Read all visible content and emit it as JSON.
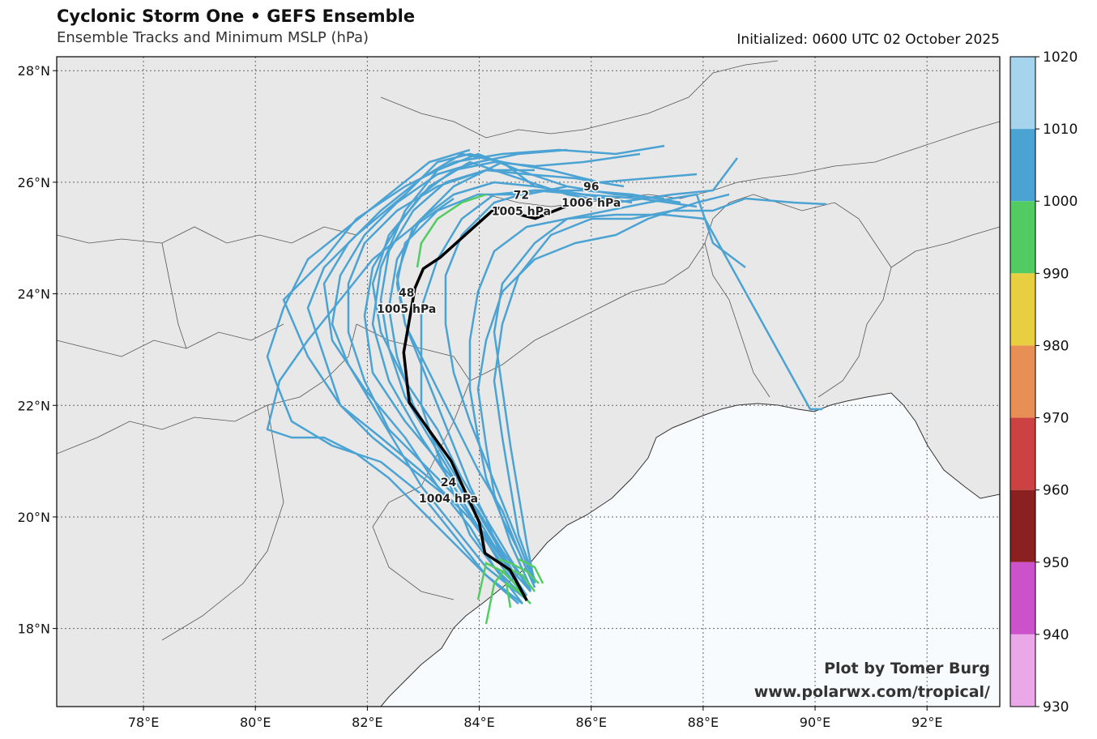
{
  "header": {
    "title": "Cyclonic Storm One • GEFS Ensemble",
    "subtitle": "Ensemble Tracks and Minimum MSLP (hPa)",
    "initialized": "Initialized: 0600 UTC 02 October 2025"
  },
  "map": {
    "lon_range": [
      76.45,
      93.3
    ],
    "lat_range": [
      16.6,
      28.25
    ],
    "lon_ticks": [
      {
        "value": 78,
        "label": "78°E"
      },
      {
        "value": 80,
        "label": "80°E"
      },
      {
        "value": 82,
        "label": "82°E"
      },
      {
        "value": 84,
        "label": "84°E"
      },
      {
        "value": 86,
        "label": "86°E"
      },
      {
        "value": 88,
        "label": "88°E"
      },
      {
        "value": 90,
        "label": "90°E"
      },
      {
        "value": 92,
        "label": "92°E"
      }
    ],
    "lat_ticks": [
      {
        "value": 18,
        "label": "18°N"
      },
      {
        "value": 20,
        "label": "20°N"
      },
      {
        "value": 22,
        "label": "22°N"
      },
      {
        "value": 24,
        "label": "24°N"
      },
      {
        "value": 26,
        "label": "26°N"
      },
      {
        "value": 28,
        "label": "28°N"
      }
    ],
    "land_color": "#e8e8e8",
    "ocean_color": "#f7fbfd",
    "gridlines": true
  },
  "colorbar": {
    "ticks": [
      "1020",
      "1010",
      "1000",
      "990",
      "980",
      "970",
      "960",
      "950",
      "940",
      "930"
    ],
    "bins": [
      {
        "range": [
          1010,
          1020
        ],
        "color": "#a6d4ec"
      },
      {
        "range": [
          1000,
          1010
        ],
        "color": "#4ba3d3"
      },
      {
        "range": [
          990,
          1000
        ],
        "color": "#52cc62"
      },
      {
        "range": [
          980,
          990
        ],
        "color": "#e8cf42"
      },
      {
        "range": [
          970,
          980
        ],
        "color": "#e88f56"
      },
      {
        "range": [
          960,
          970
        ],
        "color": "#cc4242"
      },
      {
        "range": [
          950,
          960
        ],
        "color": "#8b2020"
      },
      {
        "range": [
          940,
          950
        ],
        "color": "#cc52cc"
      },
      {
        "range": [
          930,
          940
        ],
        "color": "#eba8e8"
      }
    ]
  },
  "mean_track": {
    "color": "#000000",
    "points": [
      [
        84.85,
        18.5
      ],
      [
        84.55,
        19.05
      ],
      [
        84.1,
        19.35
      ],
      [
        84.0,
        19.9
      ],
      [
        83.5,
        21.0
      ],
      [
        82.75,
        22.05
      ],
      [
        82.65,
        22.95
      ],
      [
        82.85,
        24.1
      ],
      [
        83.0,
        24.45
      ],
      [
        83.3,
        24.65
      ],
      [
        83.8,
        25.1
      ],
      [
        84.3,
        25.55
      ],
      [
        84.6,
        25.45
      ],
      [
        85.0,
        25.35
      ],
      [
        85.5,
        25.55
      ],
      [
        86.0,
        25.7
      ]
    ],
    "labels": [
      {
        "lon": 83.45,
        "lat": 20.55,
        "hour": "24",
        "mslp": "1004 hPa"
      },
      {
        "lon": 82.7,
        "lat": 23.95,
        "hour": "48",
        "mslp": "1005 hPa"
      },
      {
        "lon": 84.75,
        "lat": 25.7,
        "hour": "72",
        "mslp": "1005 hPa"
      },
      {
        "lon": 86.0,
        "lat": 25.85,
        "hour": "96",
        "mslp": "1006 hPa"
      }
    ]
  },
  "credit": {
    "line1": "Plot by Tomer Burg",
    "line2": "www.polarwx.com/tropical/"
  }
}
